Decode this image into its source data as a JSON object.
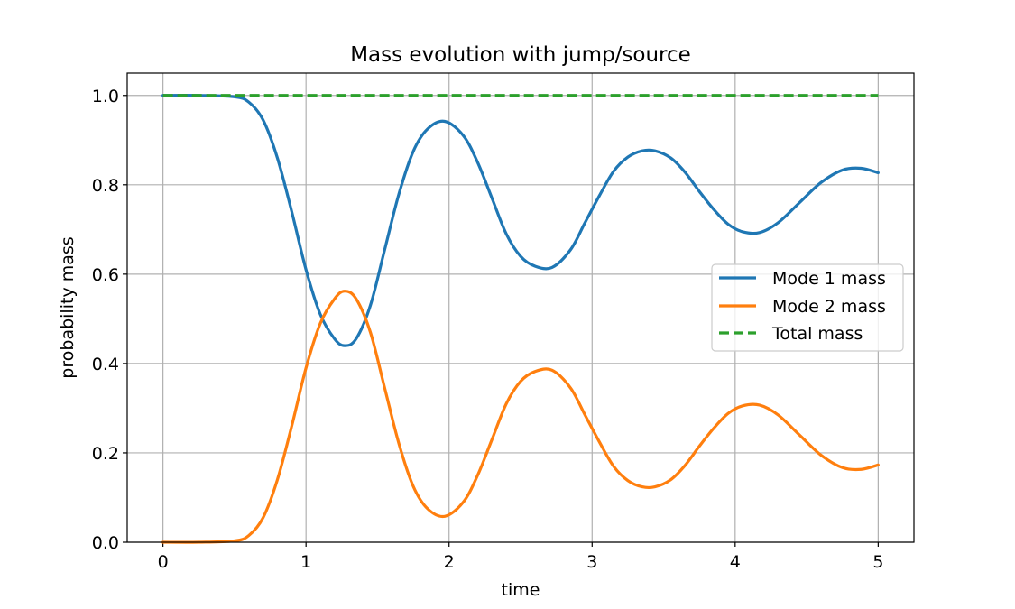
{
  "chart_data": {
    "type": "line",
    "title": "Mass evolution with jump/source",
    "xlabel": "time",
    "ylabel": "probability mass",
    "xlim": [
      -0.25,
      5.25
    ],
    "ylim": [
      0.0,
      1.05
    ],
    "xticks": [
      0,
      1,
      2,
      3,
      4,
      5
    ],
    "xtick_labels": [
      "0",
      "1",
      "2",
      "3",
      "4",
      "5"
    ],
    "yticks": [
      0.0,
      0.2,
      0.4,
      0.6,
      0.8,
      1.0
    ],
    "ytick_labels": [
      "0.0",
      "0.2",
      "0.4",
      "0.6",
      "0.8",
      "1.0"
    ],
    "grid": true,
    "legend_position": "center-right",
    "series": [
      {
        "name": "Mode 1 mass",
        "color": "#1f77b4",
        "style": "solid",
        "x": [
          0,
          0.25,
          0.5,
          0.6,
          0.7,
          0.8,
          0.9,
          1.0,
          1.1,
          1.2,
          1.27,
          1.35,
          1.45,
          1.55,
          1.65,
          1.75,
          1.85,
          1.97,
          2.1,
          2.2,
          2.3,
          2.4,
          2.5,
          2.6,
          2.72,
          2.85,
          2.95,
          3.05,
          3.15,
          3.25,
          3.35,
          3.44,
          3.55,
          3.65,
          3.75,
          3.85,
          3.95,
          4.05,
          4.17,
          4.3,
          4.45,
          4.6,
          4.75,
          4.88,
          5.0
        ],
        "y": [
          1.0,
          1.0,
          0.997,
          0.985,
          0.945,
          0.86,
          0.74,
          0.61,
          0.51,
          0.455,
          0.44,
          0.455,
          0.53,
          0.655,
          0.78,
          0.875,
          0.925,
          0.942,
          0.91,
          0.85,
          0.77,
          0.69,
          0.64,
          0.618,
          0.615,
          0.655,
          0.715,
          0.775,
          0.83,
          0.862,
          0.876,
          0.876,
          0.86,
          0.828,
          0.785,
          0.745,
          0.712,
          0.695,
          0.693,
          0.715,
          0.76,
          0.805,
          0.833,
          0.837,
          0.827
        ]
      },
      {
        "name": "Mode 2 mass",
        "color": "#ff7f0e",
        "style": "solid",
        "x": [
          0,
          0.25,
          0.5,
          0.6,
          0.7,
          0.8,
          0.9,
          1.0,
          1.1,
          1.2,
          1.27,
          1.35,
          1.45,
          1.55,
          1.65,
          1.75,
          1.85,
          1.97,
          2.1,
          2.2,
          2.3,
          2.4,
          2.5,
          2.6,
          2.72,
          2.85,
          2.95,
          3.05,
          3.15,
          3.25,
          3.35,
          3.44,
          3.55,
          3.65,
          3.75,
          3.85,
          3.95,
          4.05,
          4.17,
          4.3,
          4.45,
          4.6,
          4.75,
          4.88,
          5.0
        ],
        "y": [
          0.0,
          0.0,
          0.003,
          0.015,
          0.055,
          0.14,
          0.26,
          0.39,
          0.49,
          0.545,
          0.562,
          0.545,
          0.47,
          0.345,
          0.22,
          0.125,
          0.075,
          0.058,
          0.09,
          0.15,
          0.23,
          0.31,
          0.36,
          0.382,
          0.385,
          0.345,
          0.285,
          0.225,
          0.17,
          0.138,
          0.124,
          0.124,
          0.14,
          0.172,
          0.215,
          0.255,
          0.288,
          0.305,
          0.307,
          0.285,
          0.24,
          0.195,
          0.167,
          0.163,
          0.173
        ]
      },
      {
        "name": "Total mass",
        "color": "#2ca02c",
        "style": "dashed",
        "x": [
          0,
          5.0
        ],
        "y": [
          1.0,
          1.0
        ]
      }
    ]
  }
}
